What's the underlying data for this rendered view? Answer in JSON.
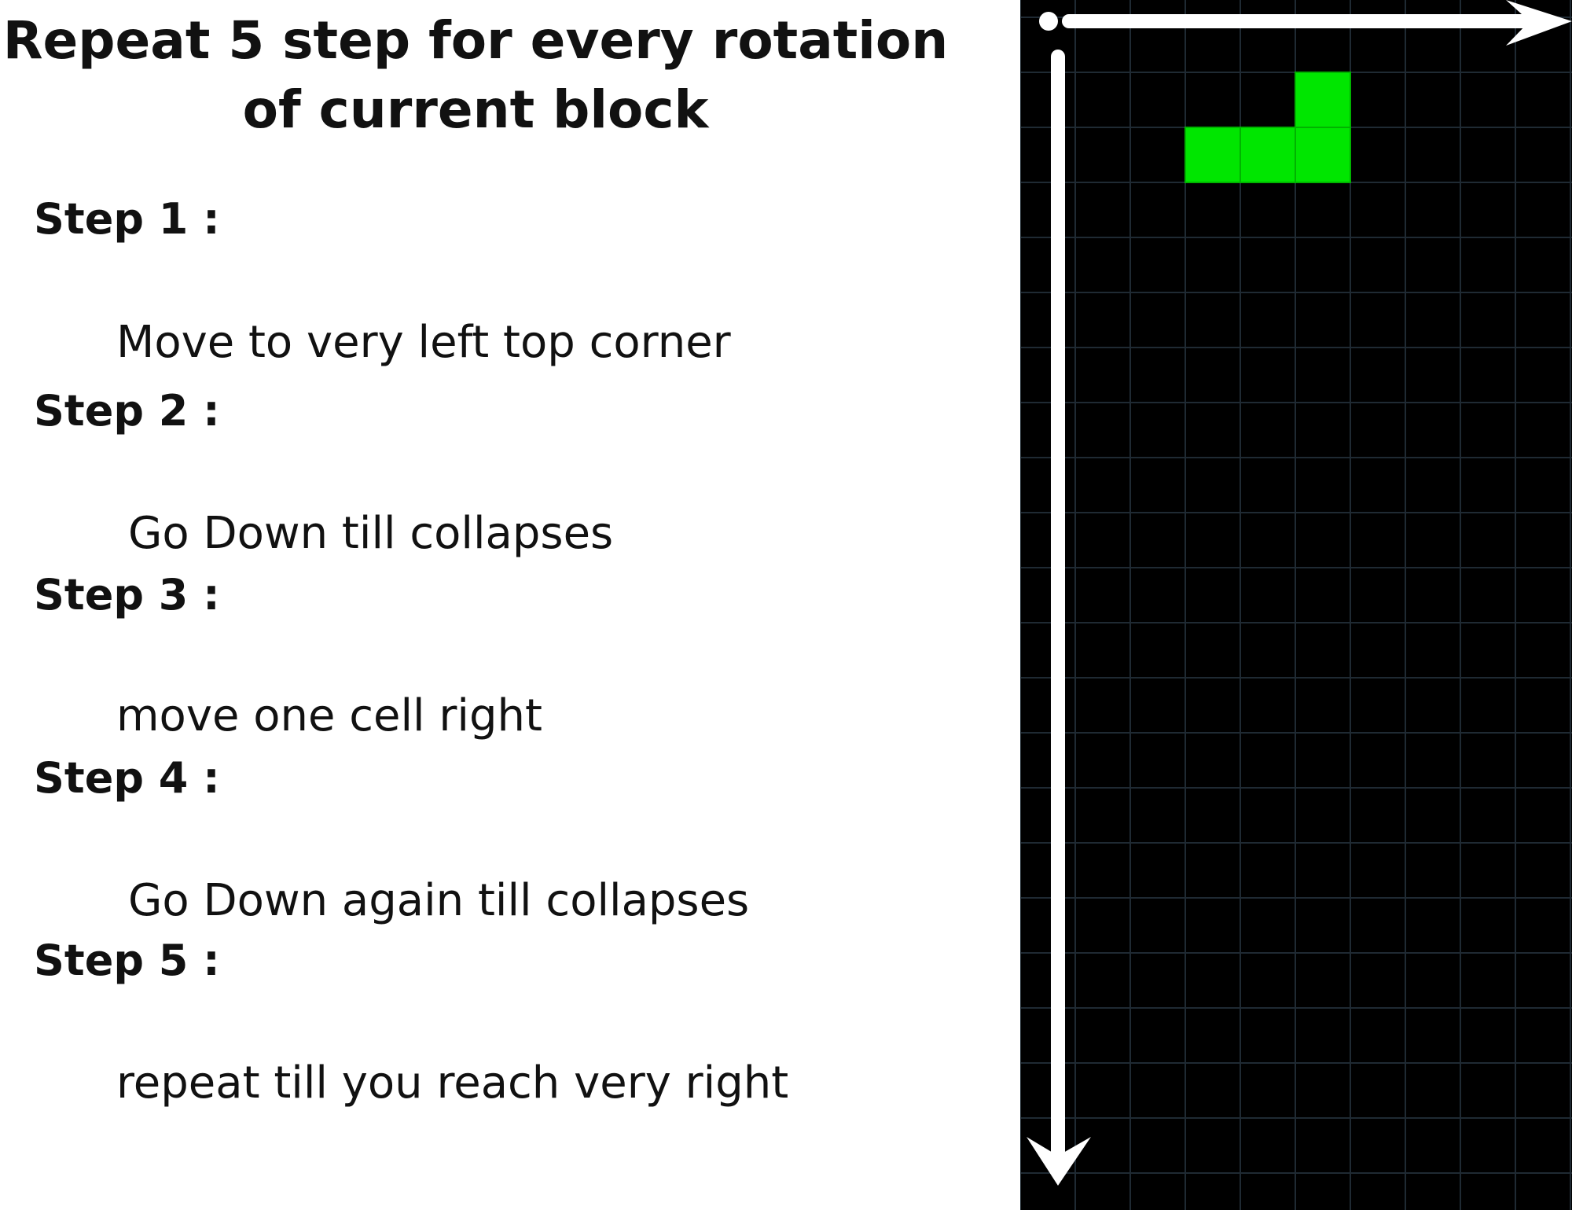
{
  "title": "Repeat 5 step for every rotation of current block",
  "steps": [
    {
      "label": "Step 1 :",
      "text": "Move to very left top corner"
    },
    {
      "label": "Step 2 :",
      "text": "Go Down till collapses"
    },
    {
      "label": "Step 3 :",
      "text": "move one cell right"
    },
    {
      "label": "Step 4 :",
      "text": "Go Down again till collapses"
    },
    {
      "label": "Step 5 :",
      "text": "repeat till you reach very right"
    }
  ],
  "board": {
    "background_color": "#000000",
    "grid_color": "#1f2a33",
    "block_color": "#00e600",
    "arrow_color": "#ffffff",
    "block_shape": "L-tetromino",
    "block_cells": [
      {
        "col": 5,
        "row": 1
      },
      {
        "col": 3,
        "row": 2
      },
      {
        "col": 4,
        "row": 2
      },
      {
        "col": 5,
        "row": 2
      }
    ]
  }
}
